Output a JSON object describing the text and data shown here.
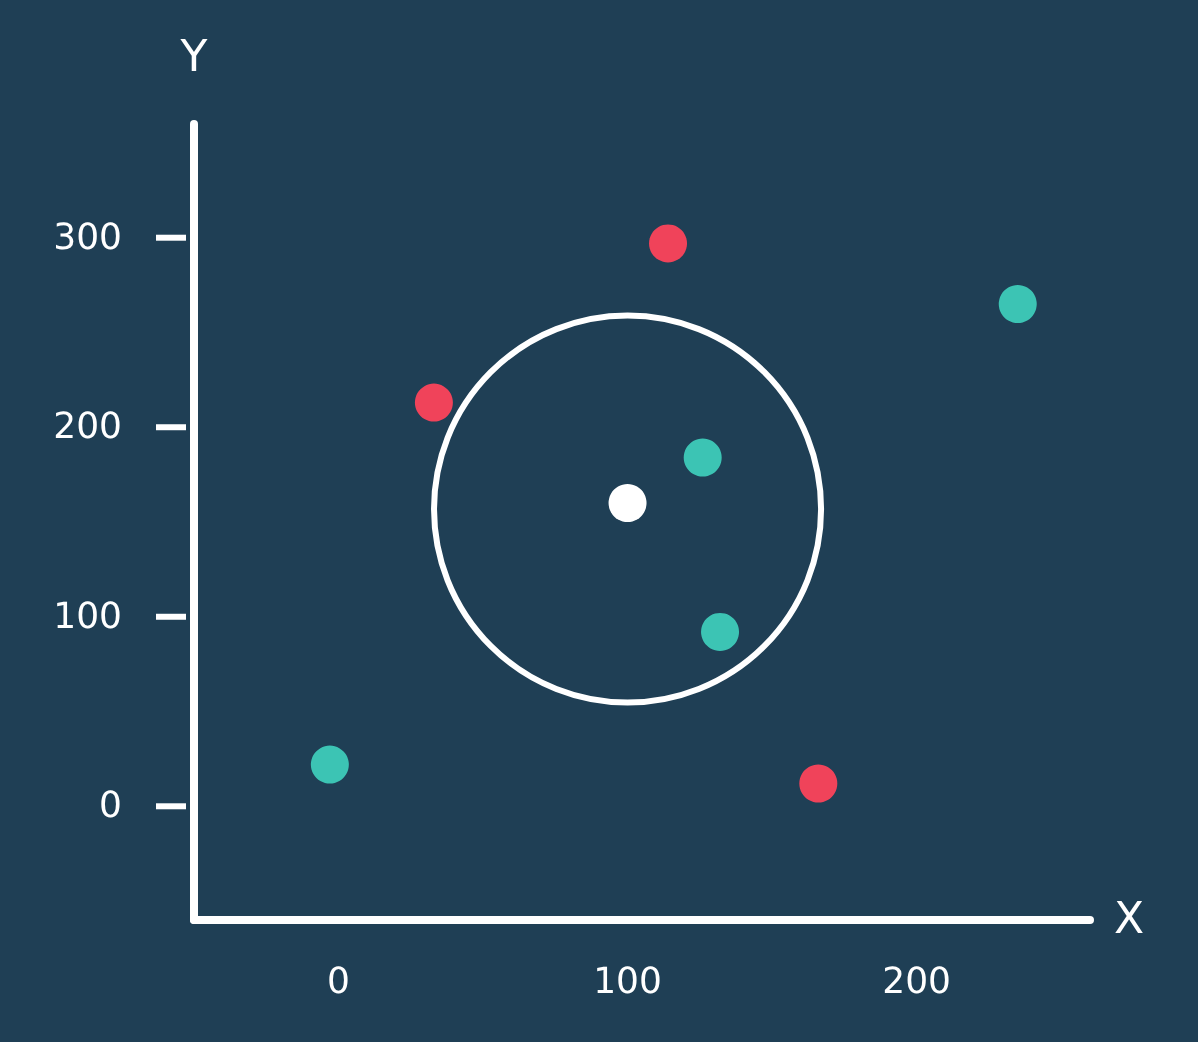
{
  "chart_data": {
    "type": "scatter",
    "xlabel": "X",
    "ylabel": "Y",
    "xlim": [
      -50,
      260
    ],
    "ylim": [
      -60,
      360
    ],
    "xticks": [
      0,
      100,
      200
    ],
    "yticks": [
      0,
      100,
      200,
      300
    ],
    "marker": "circle",
    "series": [
      {
        "color": "#3cc4b4",
        "x": [
          -3,
          126,
          132,
          235
        ],
        "values": [
          22,
          184,
          92,
          265
        ]
      },
      {
        "color": "#f0435a",
        "x": [
          33,
          114,
          166
        ],
        "values": [
          213,
          297,
          12
        ]
      },
      {
        "color": "#ffffff",
        "x": [
          100
        ],
        "values": [
          160
        ]
      }
    ]
  }
}
